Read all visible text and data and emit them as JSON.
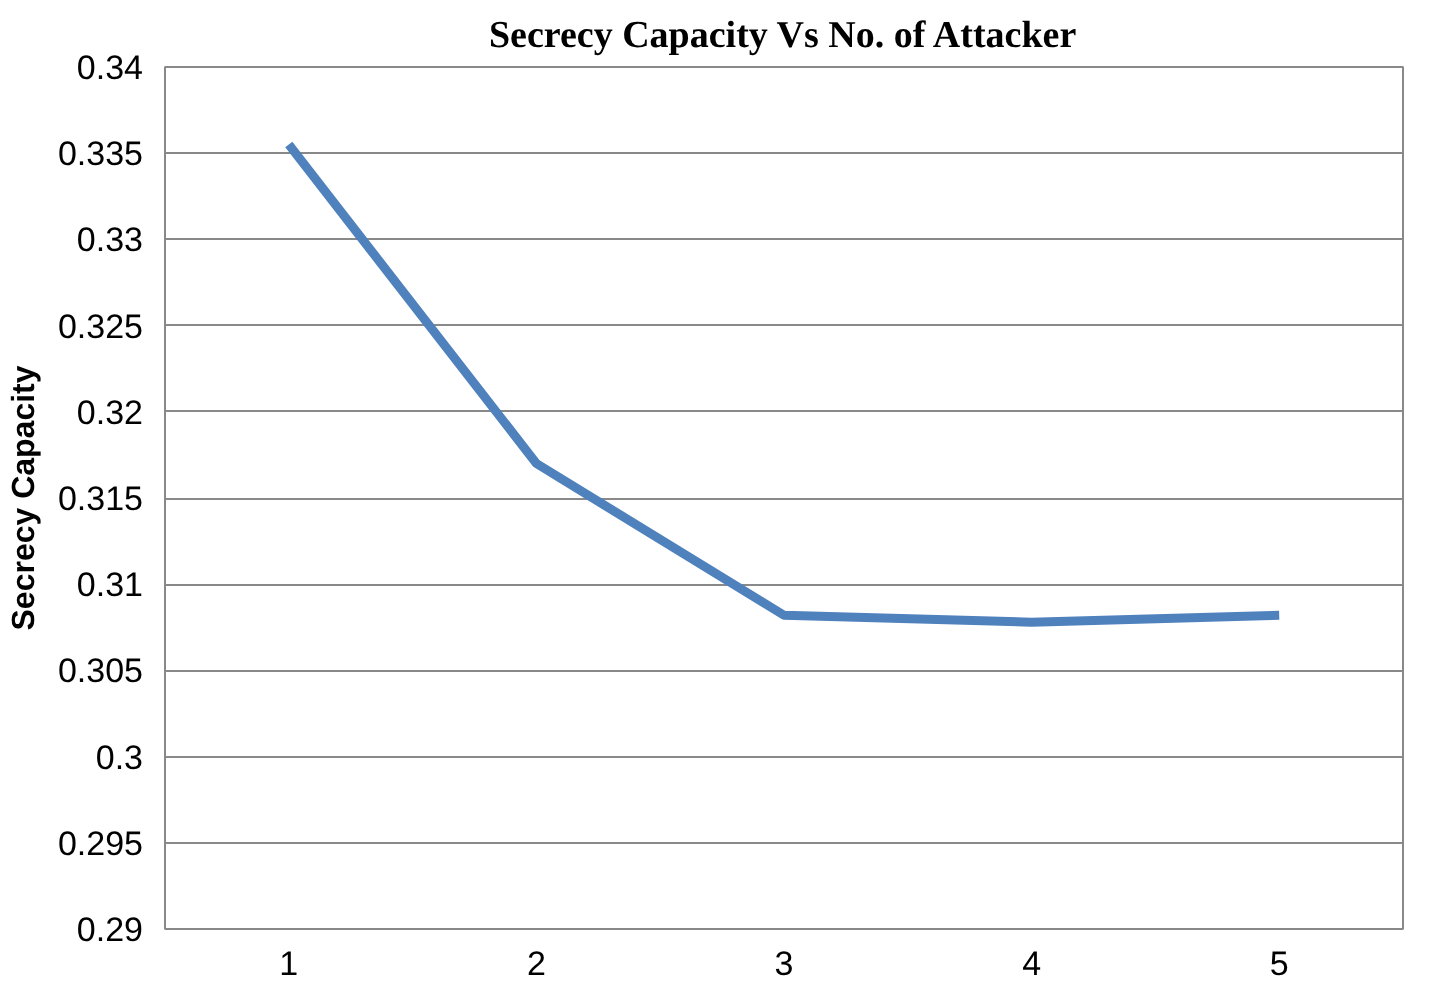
{
  "chart_data": {
    "type": "line",
    "title": "Secrecy Capacity Vs No. of Attacker",
    "ylabel": "Secrecy Capacity",
    "categories": [
      "1",
      "2",
      "3",
      "4",
      "5"
    ],
    "series": [
      {
        "color": "#4f81bd",
        "values": [
          0.3355,
          0.317,
          0.3082,
          0.3078,
          0.3082
        ]
      }
    ],
    "ylim": [
      0.29,
      0.34
    ],
    "yticks": [
      0.29,
      0.295,
      0.3,
      0.305,
      0.31,
      0.315,
      0.32,
      0.325,
      0.33,
      0.335,
      0.34
    ],
    "grid": "y",
    "marker": "none",
    "line_style": "solid"
  }
}
